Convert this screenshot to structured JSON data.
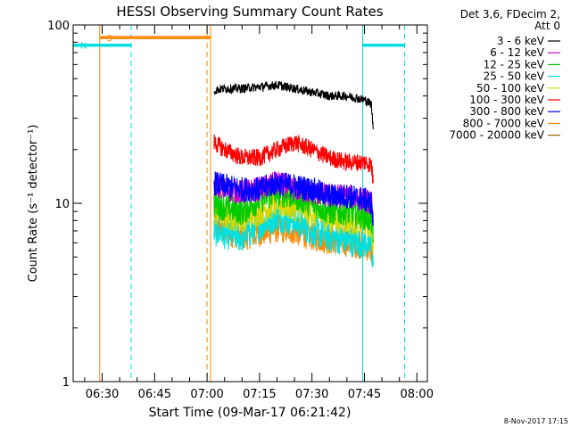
{
  "chart_data": {
    "type": "line",
    "title": "HESSI Observing Summary Count Rates",
    "xlabel": "Start Time (09-Mar-17 06:21:42)",
    "ylabel": "Count Rate (s⁻¹ detector⁻¹)",
    "xlim_minutes": [
      381.7,
      483.0
    ],
    "ylim": [
      1,
      100
    ],
    "yscale": "log",
    "x_ticks": [
      {
        "label": "06:30",
        "minutes": 390
      },
      {
        "label": "06:45",
        "minutes": 405
      },
      {
        "label": "07:00",
        "minutes": 420
      },
      {
        "label": "07:15",
        "minutes": 435
      },
      {
        "label": "07:30",
        "minutes": 450
      },
      {
        "label": "07:45",
        "minutes": 465
      },
      {
        "label": "08:00",
        "minutes": 480
      }
    ],
    "y_ticks": [
      {
        "label": "1",
        "value": 1
      },
      {
        "label": "10",
        "value": 10
      },
      {
        "label": "100",
        "value": 100
      }
    ],
    "legend_header": [
      "Det 3,6, FDecim 2,",
      "Att 0"
    ],
    "legend_placement": "right",
    "series": [
      {
        "name": "3 - 6 keV",
        "color": "#000000",
        "x": [
          422,
          425,
          430,
          435,
          440,
          445,
          450,
          455,
          460,
          465,
          467,
          467.5
        ],
        "values": [
          43,
          44,
          44,
          45,
          46,
          44,
          42,
          40,
          40,
          38,
          36,
          26
        ]
      },
      {
        "name": "6 - 12 keV",
        "color": "#cc00cc",
        "x": [
          422,
          425,
          430,
          435,
          440,
          445,
          450,
          455,
          460,
          465,
          467,
          467.5
        ],
        "values": [
          13,
          12,
          11.5,
          12,
          13,
          12,
          11.5,
          11,
          11,
          10.5,
          10,
          7.5
        ]
      },
      {
        "name": "12 - 25 keV",
        "color": "#00cc00",
        "x": [
          422,
          425,
          430,
          435,
          440,
          445,
          450,
          455,
          460,
          465,
          467,
          467.5
        ],
        "values": [
          10,
          9.5,
          9,
          10.5,
          11.5,
          11,
          10,
          9,
          9,
          8.5,
          8,
          6
        ]
      },
      {
        "name": "25 - 50 keV",
        "color": "#00e0e0",
        "x": [
          422,
          425,
          430,
          435,
          440,
          445,
          450,
          455,
          460,
          465,
          467,
          467.5
        ],
        "values": [
          7,
          6.8,
          6.5,
          7.5,
          8.5,
          8,
          7,
          6.5,
          6.2,
          6,
          5.8,
          4.5
        ]
      },
      {
        "name": "50 - 100 keV",
        "color": "#d8d800",
        "x": [
          422,
          425,
          430,
          435,
          440,
          445,
          450,
          455,
          460,
          465,
          467,
          467.5
        ],
        "values": [
          9,
          8.5,
          8.2,
          9,
          10,
          9.5,
          8.8,
          8.2,
          8,
          7.8,
          7.5,
          5.5
        ]
      },
      {
        "name": "100 - 300 keV",
        "color": "#ff0000",
        "x": [
          422,
          425,
          430,
          435,
          440,
          445,
          450,
          455,
          460,
          465,
          467,
          467.5
        ],
        "values": [
          22,
          20,
          18,
          18,
          20,
          22,
          20,
          18,
          17,
          17,
          16.5,
          13
        ]
      },
      {
        "name": "300 - 800 keV",
        "color": "#0000ff",
        "x": [
          422,
          425,
          430,
          435,
          440,
          445,
          450,
          455,
          460,
          465,
          467,
          467.5
        ],
        "values": [
          13,
          12.5,
          12,
          12,
          13,
          12.5,
          12,
          11,
          11,
          10.5,
          10,
          7.5
        ]
      },
      {
        "name": "800 - 7000 keV",
        "color": "#ff8800",
        "x": [
          422,
          425,
          430,
          435,
          440,
          445,
          450,
          455,
          460,
          465,
          467,
          467.5
        ],
        "values": [
          7.5,
          7,
          6.5,
          6.8,
          7.2,
          7,
          6.5,
          6.2,
          6,
          5.8,
          5.5,
          4.5
        ]
      },
      {
        "name": "7000 - 20000 keV",
        "color": "#996600",
        "x": [],
        "values": []
      }
    ],
    "flags": [
      {
        "label": "S",
        "color": "#ff8800",
        "x_start": 389.3,
        "x_end": 421,
        "level": 85
      },
      {
        "label": "N",
        "color": "#00e0e0",
        "x_start": 381.7,
        "x_end": 398.3,
        "level": 77
      },
      {
        "label": "",
        "color": "#00e0e0",
        "x_start": 464.5,
        "x_end": 476.5,
        "level": 77
      }
    ],
    "vertical_lines": [
      {
        "x": 389.3,
        "color": "#ff8800",
        "style": "solid"
      },
      {
        "x": 398.3,
        "color": "#00e0e0",
        "style": "dashed"
      },
      {
        "x": 420.0,
        "color": "#ff8800",
        "style": "dashed"
      },
      {
        "x": 421.0,
        "color": "#ff8800",
        "style": "solid"
      },
      {
        "x": 464.5,
        "color": "#00e0e0",
        "style": "solid"
      },
      {
        "x": 476.5,
        "color": "#00e0e0",
        "style": "dashed"
      }
    ],
    "grid": false
  },
  "footer": {
    "date": "8-Nov-2017 17:15"
  }
}
